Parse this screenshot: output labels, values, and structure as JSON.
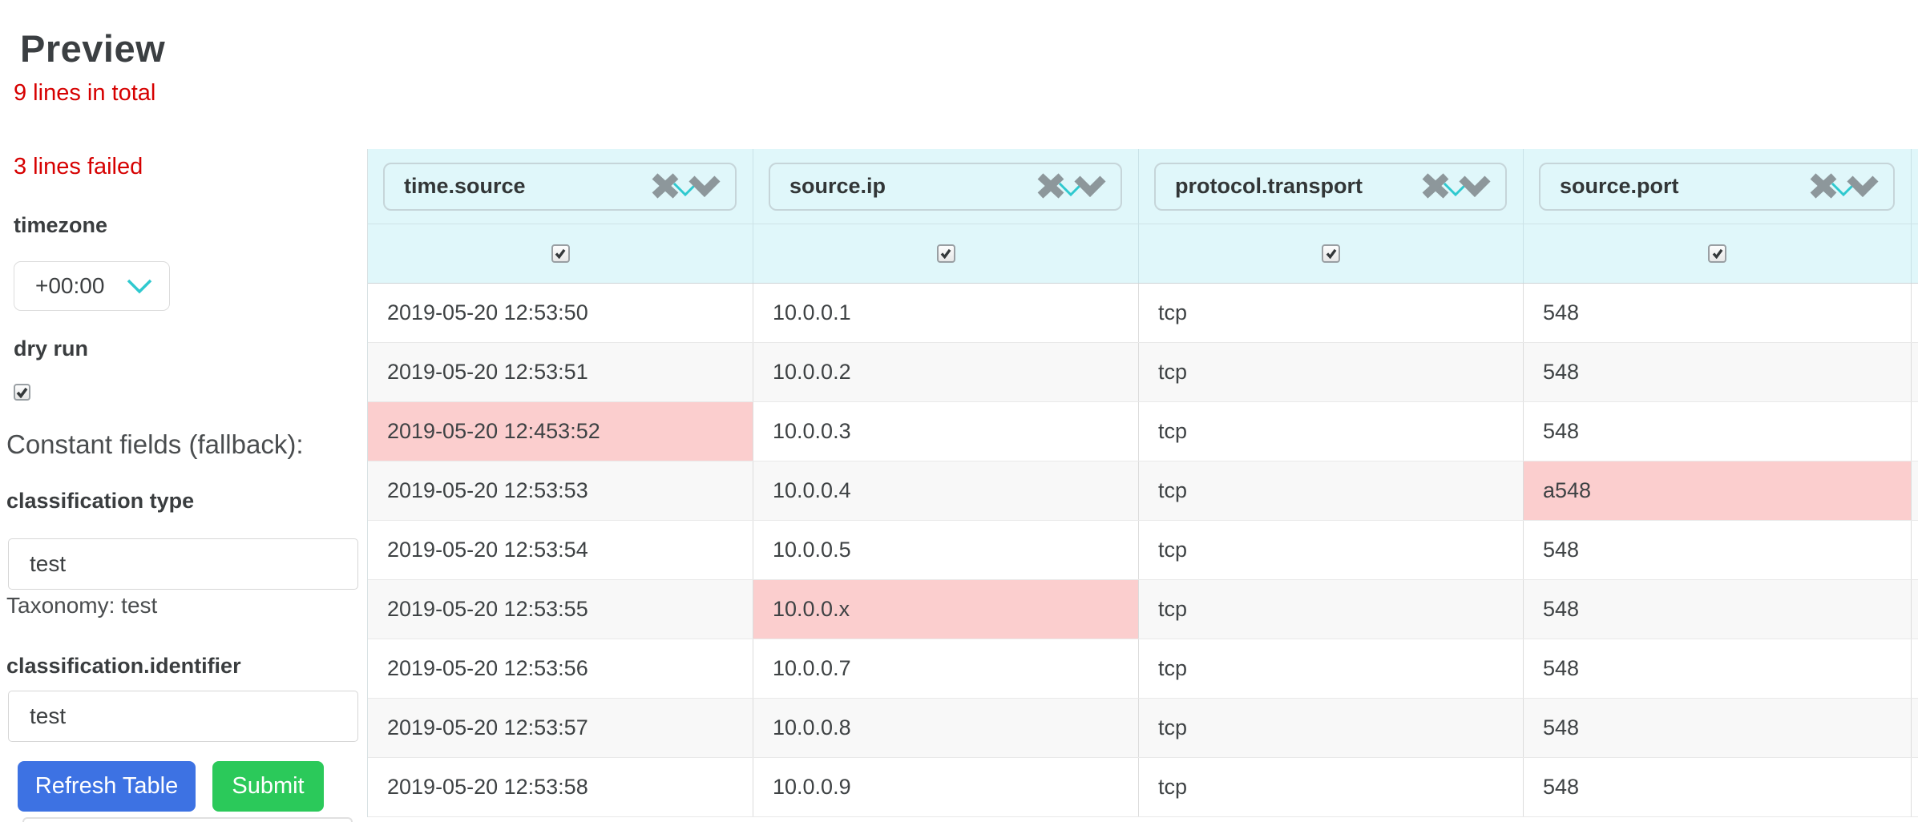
{
  "page": {
    "title": "Preview",
    "total_line": "9 lines in total",
    "failed_line": "3 lines failed"
  },
  "sidebar": {
    "timezone": {
      "label": "timezone",
      "value": "+00:00"
    },
    "dry_run": {
      "label": "dry run",
      "checked": true
    },
    "constant_fields_heading": "Constant fields (fallback):",
    "classification_type": {
      "label": "classification type",
      "value": "test",
      "help": "Taxonomy: test"
    },
    "classification_identifier": {
      "label": "classification.identifier",
      "value": "test"
    },
    "buttons": {
      "refresh": "Refresh Table",
      "submit": "Submit"
    }
  },
  "table": {
    "columns": [
      {
        "field": "time.source"
      },
      {
        "field": "source.ip"
      },
      {
        "field": "protocol.transport"
      },
      {
        "field": "source.port"
      }
    ],
    "filter_row": {
      "checkboxes": [
        true,
        true,
        true,
        true
      ]
    },
    "rows": [
      {
        "cells": [
          "2019-05-20 12:53:50",
          "10.0.0.1",
          "tcp",
          "548"
        ],
        "failed": []
      },
      {
        "cells": [
          "2019-05-20 12:53:51",
          "10.0.0.2",
          "tcp",
          "548"
        ],
        "failed": []
      },
      {
        "cells": [
          "2019-05-20 12:453:52",
          "10.0.0.3",
          "tcp",
          "548"
        ],
        "failed": [
          0
        ]
      },
      {
        "cells": [
          "2019-05-20 12:53:53",
          "10.0.0.4",
          "tcp",
          "a548"
        ],
        "failed": [
          3
        ]
      },
      {
        "cells": [
          "2019-05-20 12:53:54",
          "10.0.0.5",
          "tcp",
          "548"
        ],
        "failed": []
      },
      {
        "cells": [
          "2019-05-20 12:53:55",
          "10.0.0.x",
          "tcp",
          "548"
        ],
        "failed": [
          1
        ]
      },
      {
        "cells": [
          "2019-05-20 12:53:56",
          "10.0.0.7",
          "tcp",
          "548"
        ],
        "failed": []
      },
      {
        "cells": [
          "2019-05-20 12:53:57",
          "10.0.0.8",
          "tcp",
          "548"
        ],
        "failed": []
      },
      {
        "cells": [
          "2019-05-20 12:53:58",
          "10.0.0.9",
          "tcp",
          "548"
        ],
        "failed": []
      }
    ]
  },
  "colors": {
    "error_text": "#d60000",
    "error_cell_bg": "#fbcece",
    "header_bg": "#e0f7fa",
    "accent_teal": "#2fc9cf",
    "icon_gray": "#8d979b",
    "refresh_button": "#3d72e3",
    "submit_button": "#2bc95a"
  }
}
